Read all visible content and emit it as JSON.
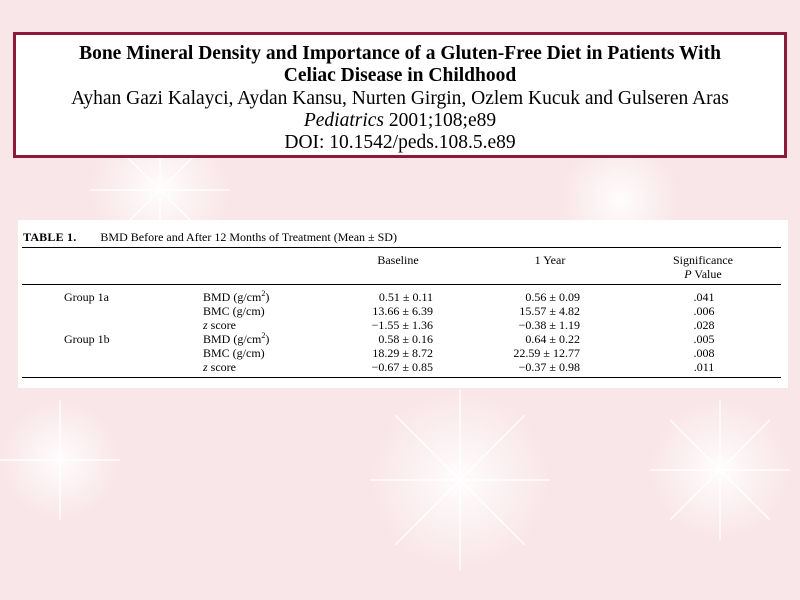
{
  "article": {
    "title_line1": "Bone Mineral Density and Importance of a Gluten-Free Diet in Patients With",
    "title_line2": "Celiac Disease in Childhood",
    "authors": "Ayhan Gazi Kalayci, Aydan Kansu, Nurten Girgin, Ozlem Kucuk and Gulseren Aras",
    "journal": "Pediatrics",
    "citation": "2001;108;e89",
    "doi": "DOI: 10.1542/peds.108.5.e89"
  },
  "table": {
    "label": "TABLE 1.",
    "caption": "BMD Before and After 12 Months of Treatment (Mean ± SD)",
    "headers": {
      "baseline": "Baseline",
      "year": "1 Year",
      "significance": "Significance",
      "pvalue_p": "P",
      "pvalue_rest": " Value"
    },
    "groups": [
      {
        "name": "Group 1a",
        "rows": [
          {
            "measure": "BMD (g/cm",
            "sup": "2",
            "measure_tail": ")",
            "baseline": "0.51 ± 0.11",
            "year": "0.56 ± 0.09",
            "p": ".041"
          },
          {
            "measure": "BMC (g/cm)",
            "sup": "",
            "measure_tail": "",
            "baseline": "13.66 ± 6.39",
            "year": "15.57 ± 4.82",
            "p": ".006"
          },
          {
            "measure": "z",
            "sup": "",
            "measure_tail": " score",
            "baseline": "−1.55 ± 1.36",
            "year": "−0.38 ± 1.19",
            "p": ".028"
          }
        ]
      },
      {
        "name": "Group 1b",
        "rows": [
          {
            "measure": "BMD (g/cm",
            "sup": "2",
            "measure_tail": ")",
            "baseline": "0.58 ± 0.16",
            "year": "0.64 ± 0.22",
            "p": ".005"
          },
          {
            "measure": "BMC (g/cm)",
            "sup": "",
            "measure_tail": "",
            "baseline": "18.29 ± 8.72",
            "year": "22.59 ± 12.77",
            "p": ".008"
          },
          {
            "measure": "z",
            "sup": "",
            "measure_tail": " score",
            "baseline": "−0.67 ± 0.85",
            "year": "−0.37 ± 0.98",
            "p": ".011"
          }
        ]
      }
    ]
  },
  "colors": {
    "title_border": "#8c1a3a",
    "background": "#fbeeee"
  }
}
